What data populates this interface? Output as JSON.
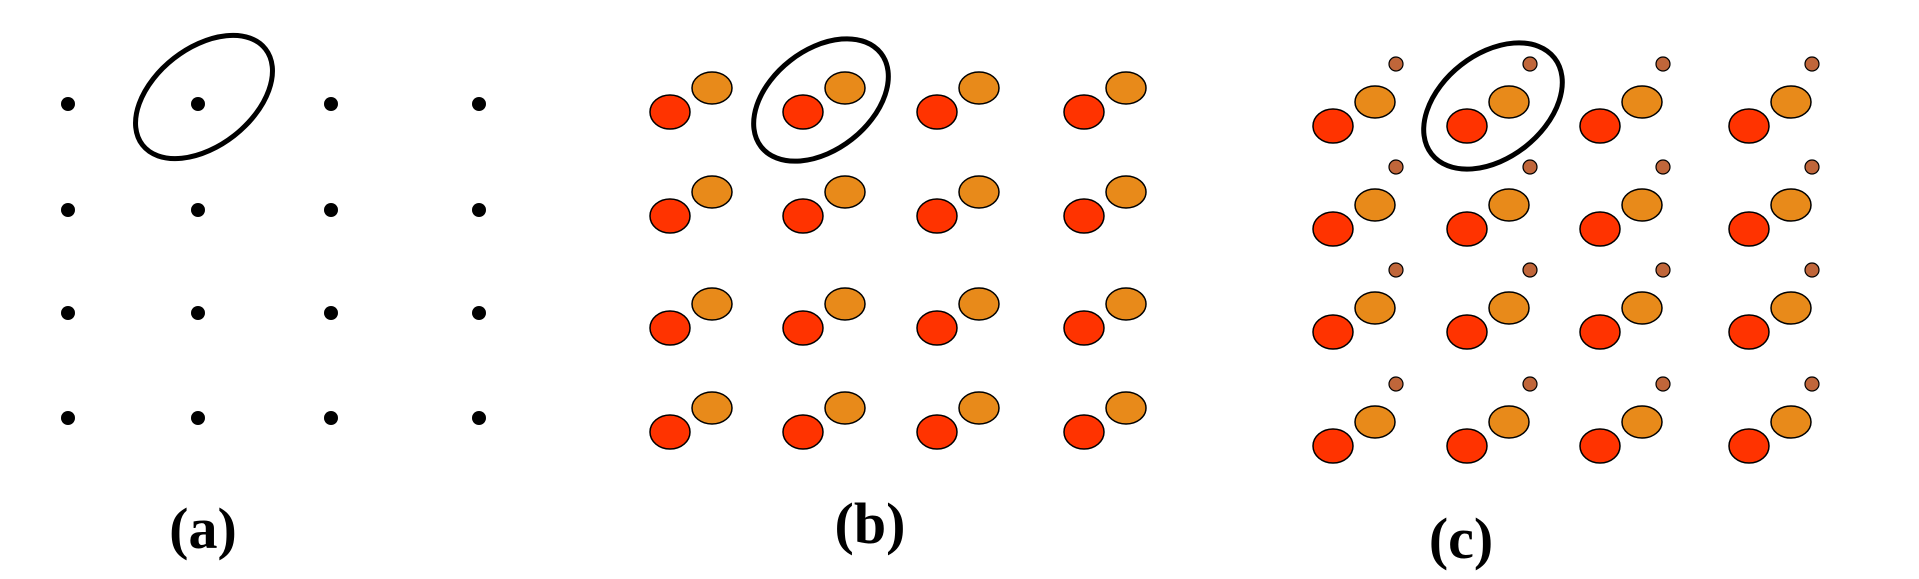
{
  "panels": [
    {
      "label": "(a)",
      "motif": "single-point"
    },
    {
      "label": "(b)",
      "motif": "two-atom-basis"
    },
    {
      "label": "(c)",
      "motif": "three-atom-basis"
    }
  ],
  "lattice": {
    "rows": 4,
    "cols": 4,
    "highlighted_cell": {
      "row": 0,
      "col": 1
    }
  },
  "colors": {
    "lattice_point": "#000000",
    "atom_red": "#ff3300",
    "atom_orange": "#e88a1a",
    "atom_small": "#c0663a",
    "outline": "#000000",
    "background": "#ffffff"
  }
}
